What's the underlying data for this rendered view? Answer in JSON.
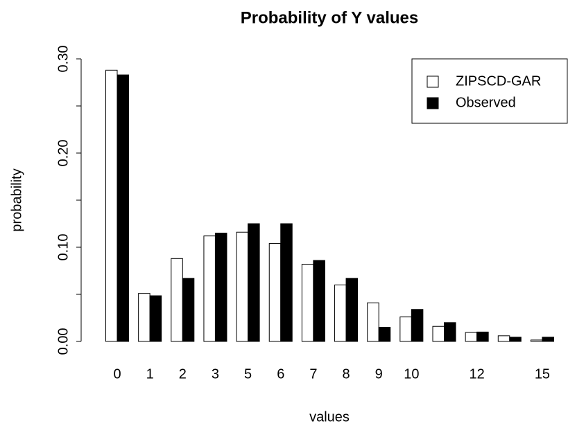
{
  "chart_data": {
    "type": "bar",
    "title": "Probability of Y values",
    "x_label": "values",
    "y_label": "probability",
    "categories": [
      "0",
      "1",
      "2",
      "3",
      "5",
      "6",
      "7",
      "8",
      "9",
      "10",
      null,
      "12",
      null,
      "15"
    ],
    "series": [
      {
        "name": "ZIPSCD-GAR",
        "color": "#ffffff",
        "values": [
          0.288,
          0.051,
          0.088,
          0.112,
          0.116,
          0.104,
          0.082,
          0.06,
          0.041,
          0.026,
          0.016,
          0.0095,
          0.006,
          0.0015
        ]
      },
      {
        "name": "Observed",
        "color": "#000000",
        "values": [
          0.283,
          0.0485,
          0.067,
          0.115,
          0.125,
          0.125,
          0.086,
          0.067,
          0.015,
          0.034,
          0.02,
          0.01,
          0.0045,
          0.0045
        ]
      }
    ],
    "ylim": [
      0,
      0.3
    ],
    "yticks": [
      {
        "value": 0,
        "label": "0.00"
      },
      {
        "value": 0.1,
        "label": "0.10"
      },
      {
        "value": 0.2,
        "label": "0.20"
      },
      {
        "value": 0.3,
        "label": "0.30"
      }
    ],
    "yminor_ticks": [
      0.05,
      0.15,
      0.25
    ],
    "legend": "topright"
  }
}
